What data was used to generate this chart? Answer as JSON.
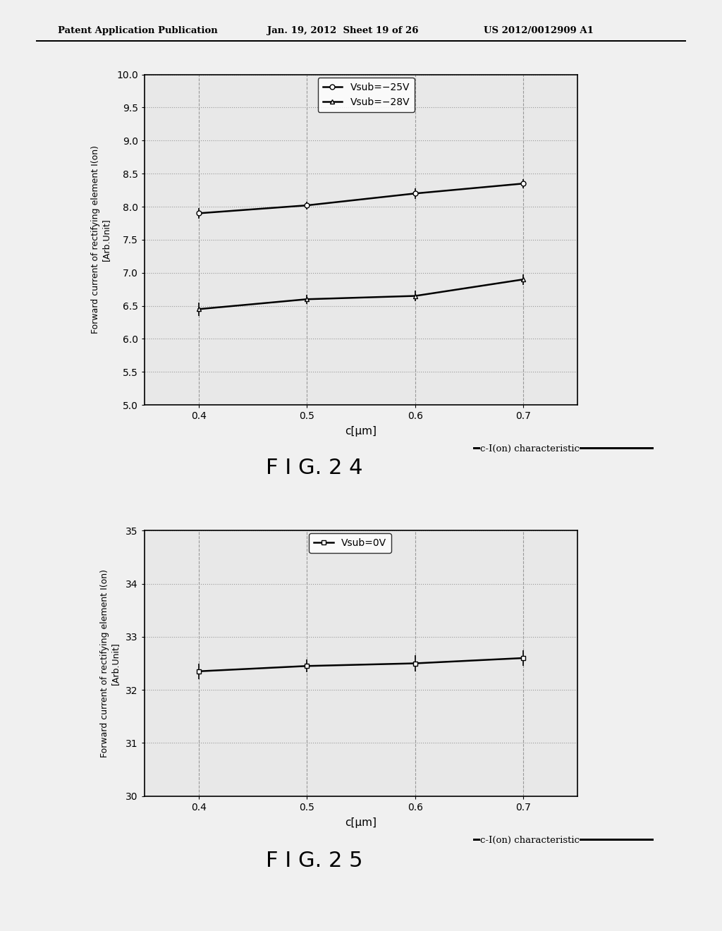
{
  "fig1": {
    "x": [
      0.4,
      0.5,
      0.6,
      0.7
    ],
    "series1_y": [
      7.9,
      8.02,
      8.2,
      8.35
    ],
    "series2_y": [
      6.45,
      6.6,
      6.65,
      6.9
    ],
    "series1_err": [
      0.08,
      0.06,
      0.08,
      0.07
    ],
    "series2_err": [
      0.1,
      0.07,
      0.08,
      0.08
    ],
    "series1_label": "Vsub=−25V",
    "series2_label": "Vsub=−28V",
    "xlabel": "c[μm]",
    "ylabel1": "Forward current of rectifying element I(on)",
    "ylabel2": "[Arb.Unit]",
    "xlim": [
      0.35,
      0.75
    ],
    "ylim": [
      5,
      10
    ],
    "yticks": [
      5,
      5.5,
      6,
      6.5,
      7,
      7.5,
      8,
      8.5,
      9,
      9.5,
      10
    ],
    "xticks": [
      0.4,
      0.5,
      0.6,
      0.7
    ],
    "caption_right": "c-I(on) characteristic",
    "fig_label": "F I G. 2 4"
  },
  "fig2": {
    "x": [
      0.4,
      0.5,
      0.6,
      0.7
    ],
    "series1_y": [
      32.35,
      32.45,
      32.5,
      32.6
    ],
    "series1_err": [
      0.15,
      0.12,
      0.15,
      0.15
    ],
    "series1_label": "Vsub=0V",
    "xlabel": "c[μm]",
    "ylabel1": "Forward current of rectifying element I(on)",
    "ylabel2": "[Arb.Unit]",
    "xlim": [
      0.35,
      0.75
    ],
    "ylim": [
      30,
      35
    ],
    "yticks": [
      30,
      31,
      32,
      33,
      34,
      35
    ],
    "xticks": [
      0.4,
      0.5,
      0.6,
      0.7
    ],
    "caption_right": "c-I(on) characteristic",
    "fig_label": "F I G. 2 5"
  },
  "header_left": "Patent Application Publication",
  "header_center": "Jan. 19, 2012  Sheet 19 of 26",
  "header_right": "US 2012/0012909 A1",
  "background_color": "#f0f0f0",
  "plot_bg": "#e8e8e8",
  "line_color": "#000000",
  "grid_color": "#999999",
  "font_size": 11
}
